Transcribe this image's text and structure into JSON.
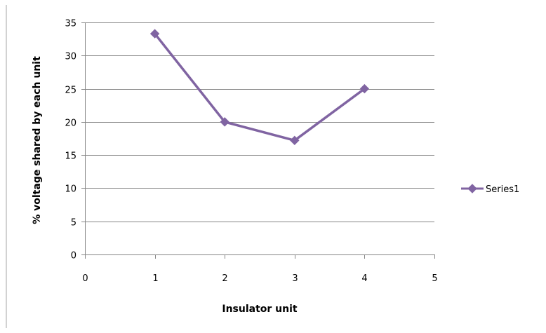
{
  "chart_data": {
    "type": "scatter",
    "xlabel": "Insulator unit",
    "ylabel": "% voltage shared by each unit",
    "xlim": [
      0,
      5
    ],
    "ylim": [
      0,
      35
    ],
    "x_ticks": [
      "0",
      "1",
      "2",
      "3",
      "4",
      "5"
    ],
    "y_ticks": [
      "0",
      "5",
      "10",
      "15",
      "20",
      "25",
      "30",
      "35"
    ],
    "grid": "horizontal",
    "legend_position": "right",
    "series": [
      {
        "name": "Series1",
        "marker": "diamond",
        "line": "straight",
        "color": "#8064A2",
        "x": [
          1,
          2,
          3,
          4
        ],
        "values": [
          33.3,
          20.0,
          17.2,
          25.0
        ]
      }
    ]
  },
  "colors": {
    "gridline": "#868686",
    "axis": "#868686",
    "frame_left": "#A6A6A6"
  }
}
